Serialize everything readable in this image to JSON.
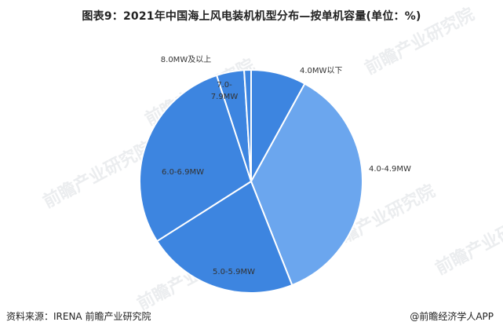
{
  "title": "图表9：2021年中国海上风电装机机型分布—按单机容量(单位：%)",
  "footer": {
    "source": "资料来源：IRENA 前瞻产业研究院",
    "brand": "@前瞻经济学人APP"
  },
  "watermark_text": "前瞻产业研究院",
  "colors": {
    "dark_blue": "#3d85e0",
    "light_blue": "#6ba6ee"
  },
  "chart_data": {
    "type": "pie",
    "title": "图表9：2021年中国海上风电装机机型分布—按单机容量(单位：%)",
    "start_angle_deg": 0,
    "direction": "clockwise",
    "slices": [
      {
        "label": "4.0MW以下",
        "value": 8.0,
        "color": "#3d85e0"
      },
      {
        "label": "4.0-4.9MW",
        "value": 36.0,
        "color": "#6ba6ee"
      },
      {
        "label": "5.0-5.9MW",
        "value": 22.0,
        "color": "#3d85e0"
      },
      {
        "label": "6.0-6.9MW",
        "value": 29.0,
        "color": "#3d85e0"
      },
      {
        "label": "7.0-7.9MW",
        "value": 4.0,
        "color": "#3d85e0"
      },
      {
        "label": "8.0MW及以上",
        "value": 1.0,
        "color": "#3d85e0"
      }
    ]
  }
}
